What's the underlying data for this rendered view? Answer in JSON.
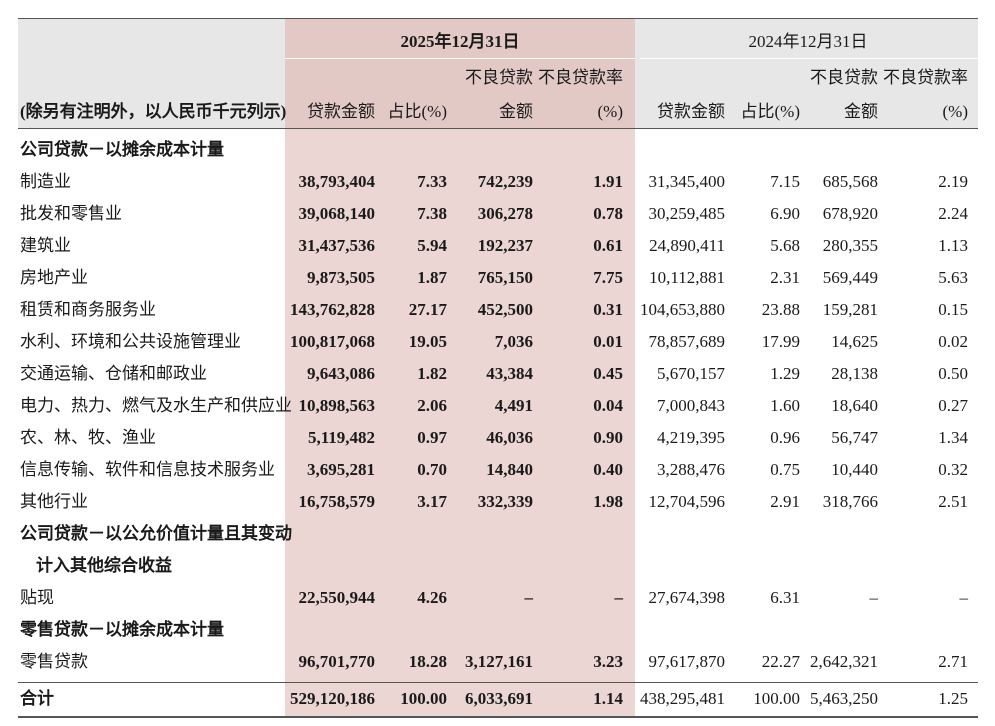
{
  "header": {
    "note": "(除另有注明外，以人民币千元列示)",
    "periods": [
      {
        "date": "2025年12月31日",
        "columns": [
          [
            "贷款金额"
          ],
          [
            "占比(%)"
          ],
          [
            "不良贷款",
            "金额"
          ],
          [
            "不良贷款率",
            "(%)"
          ]
        ]
      },
      {
        "date": "2024年12月31日",
        "columns": [
          [
            "贷款金额"
          ],
          [
            "占比(%)"
          ],
          [
            "不良贷款",
            "金额"
          ],
          [
            "不良贷款率",
            "(%)"
          ]
        ]
      }
    ]
  },
  "table": {
    "rows": [
      {
        "heading": [
          "公司贷款－以摊余成本计量"
        ]
      },
      {
        "label": "制造业",
        "cells": [
          "38,793,404",
          "7.33",
          "742,239",
          "1.91",
          "31,345,400",
          "7.15",
          "685,568",
          "2.19"
        ]
      },
      {
        "label": "批发和零售业",
        "cells": [
          "39,068,140",
          "7.38",
          "306,278",
          "0.78",
          "30,259,485",
          "6.90",
          "678,920",
          "2.24"
        ]
      },
      {
        "label": "建筑业",
        "cells": [
          "31,437,536",
          "5.94",
          "192,237",
          "0.61",
          "24,890,411",
          "5.68",
          "280,355",
          "1.13"
        ]
      },
      {
        "label": "房地产业",
        "cells": [
          "9,873,505",
          "1.87",
          "765,150",
          "7.75",
          "10,112,881",
          "2.31",
          "569,449",
          "5.63"
        ]
      },
      {
        "label": "租赁和商务服务业",
        "cells": [
          "143,762,828",
          "27.17",
          "452,500",
          "0.31",
          "104,653,880",
          "23.88",
          "159,281",
          "0.15"
        ]
      },
      {
        "label": "水利、环境和公共设施管理业",
        "cells": [
          "100,817,068",
          "19.05",
          "7,036",
          "0.01",
          "78,857,689",
          "17.99",
          "14,625",
          "0.02"
        ]
      },
      {
        "label": "交通运输、仓储和邮政业",
        "cells": [
          "9,643,086",
          "1.82",
          "43,384",
          "0.45",
          "5,670,157",
          "1.29",
          "28,138",
          "0.50"
        ]
      },
      {
        "label": "电力、热力、燃气及水生产和供应业",
        "cells": [
          "10,898,563",
          "2.06",
          "4,491",
          "0.04",
          "7,000,843",
          "1.60",
          "18,640",
          "0.27"
        ]
      },
      {
        "label": "农、林、牧、渔业",
        "cells": [
          "5,119,482",
          "0.97",
          "46,036",
          "0.90",
          "4,219,395",
          "0.96",
          "56,747",
          "1.34"
        ]
      },
      {
        "label": "信息传输、软件和信息技术服务业",
        "cells": [
          "3,695,281",
          "0.70",
          "14,840",
          "0.40",
          "3,288,476",
          "0.75",
          "10,440",
          "0.32"
        ]
      },
      {
        "label": "其他行业",
        "cells": [
          "16,758,579",
          "3.17",
          "332,339",
          "1.98",
          "12,704,596",
          "2.91",
          "318,766",
          "2.51"
        ]
      },
      {
        "heading": [
          "公司贷款－以公允价值计量且其变动",
          "计入其他综合收益"
        ]
      },
      {
        "label": "贴现",
        "cells": [
          "22,550,944",
          "4.26",
          "–",
          "–",
          "27,674,398",
          "6.31",
          "–",
          "–"
        ]
      },
      {
        "heading": [
          "零售贷款－以摊余成本计量"
        ]
      },
      {
        "label": "零售贷款",
        "cells": [
          "96,701,770",
          "18.28",
          "3,127,161",
          "3.23",
          "97,617,870",
          "22.27",
          "2,642,321",
          "2.71"
        ]
      }
    ],
    "total": {
      "label": "合计",
      "cells": [
        "529,120,186",
        "100.00",
        "6,033,691",
        "1.14",
        "438,295,481",
        "100.00",
        "5,463,250",
        "1.25"
      ]
    }
  }
}
